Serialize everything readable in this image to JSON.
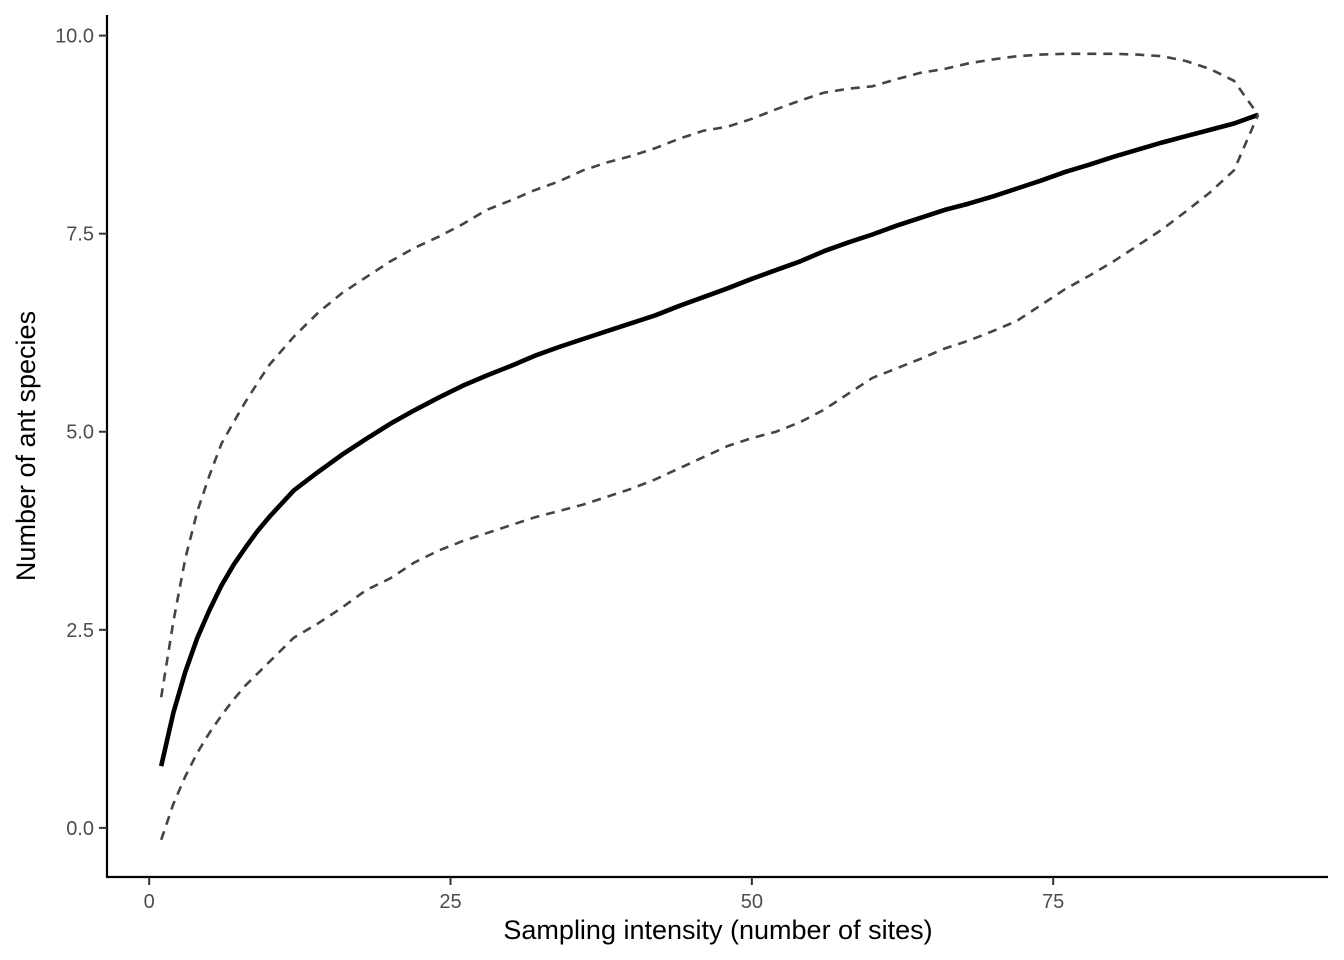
{
  "chart_data": {
    "type": "line",
    "title": "",
    "xlabel": "Sampling intensity (number of sites)",
    "ylabel": "Number of ant species",
    "xlim": [
      -3.5,
      97.8
    ],
    "ylim": [
      -0.62,
      10.26
    ],
    "x_ticks": [
      0,
      25,
      50,
      75
    ],
    "x_tick_labels": [
      "0",
      "25",
      "50",
      "75"
    ],
    "y_ticks": [
      0,
      2.5,
      5,
      7.5,
      10
    ],
    "y_tick_labels": [
      "0.0",
      "2.5",
      "5.0",
      "7.5",
      "10.0"
    ],
    "grid": false,
    "legend": "none",
    "series": [
      {
        "role": "mean",
        "color": "#000000",
        "line_style": "solid",
        "x": [
          1,
          2,
          3,
          4,
          5,
          6,
          7,
          8,
          9,
          10,
          12,
          14,
          16,
          18,
          20,
          22,
          24,
          26,
          28,
          30,
          32,
          34,
          36,
          38,
          40,
          42,
          44,
          46,
          48,
          50,
          52,
          54,
          56,
          58,
          60,
          62,
          64,
          66,
          68,
          70,
          72,
          74,
          76,
          78,
          80,
          82,
          84,
          86,
          88,
          90,
          92
        ],
        "y": [
          0.78,
          1.45,
          1.97,
          2.4,
          2.75,
          3.06,
          3.32,
          3.54,
          3.75,
          3.93,
          4.26,
          4.49,
          4.71,
          4.91,
          5.1,
          5.27,
          5.43,
          5.58,
          5.71,
          5.83,
          5.96,
          6.07,
          6.17,
          6.27,
          6.37,
          6.47,
          6.59,
          6.7,
          6.81,
          6.93,
          7.04,
          7.15,
          7.28,
          7.39,
          7.49,
          7.6,
          7.7,
          7.8,
          7.88,
          7.97,
          8.07,
          8.17,
          8.28,
          8.37,
          8.47,
          8.56,
          8.65,
          8.73,
          8.81,
          8.89,
          9.0
        ]
      },
      {
        "role": "upper",
        "color": "#444444",
        "line_style": "dashed",
        "x": [
          1,
          2,
          3,
          4,
          5,
          6,
          7,
          8,
          9,
          10,
          12,
          14,
          16,
          18,
          20,
          22,
          24,
          26,
          28,
          30,
          32,
          34,
          36,
          38,
          40,
          42,
          44,
          46,
          48,
          50,
          52,
          54,
          56,
          58,
          60,
          62,
          64,
          66,
          68,
          70,
          72,
          74,
          76,
          78,
          80,
          82,
          84,
          86,
          88,
          90,
          92
        ],
        "y": [
          1.65,
          2.6,
          3.4,
          4.0,
          4.45,
          4.85,
          5.12,
          5.38,
          5.62,
          5.85,
          6.2,
          6.5,
          6.75,
          6.95,
          7.15,
          7.32,
          7.46,
          7.62,
          7.8,
          7.92,
          8.05,
          8.16,
          8.3,
          8.4,
          8.48,
          8.58,
          8.7,
          8.8,
          8.85,
          8.95,
          9.07,
          9.18,
          9.28,
          9.33,
          9.36,
          9.45,
          9.53,
          9.58,
          9.65,
          9.7,
          9.74,
          9.76,
          9.77,
          9.77,
          9.77,
          9.76,
          9.74,
          9.68,
          9.58,
          9.43,
          9.0
        ]
      },
      {
        "role": "lower",
        "color": "#444444",
        "line_style": "dashed",
        "x": [
          1,
          2,
          3,
          4,
          5,
          6,
          7,
          8,
          9,
          10,
          12,
          14,
          16,
          18,
          20,
          22,
          24,
          26,
          28,
          30,
          32,
          34,
          36,
          38,
          40,
          42,
          44,
          46,
          48,
          50,
          52,
          54,
          56,
          58,
          60,
          62,
          64,
          66,
          68,
          70,
          72,
          74,
          76,
          78,
          80,
          82,
          84,
          86,
          88,
          90,
          92
        ],
        "y": [
          -0.15,
          0.3,
          0.65,
          0.95,
          1.2,
          1.42,
          1.62,
          1.8,
          1.95,
          2.1,
          2.4,
          2.58,
          2.78,
          3.0,
          3.15,
          3.35,
          3.5,
          3.62,
          3.72,
          3.82,
          3.92,
          4.0,
          4.08,
          4.18,
          4.28,
          4.4,
          4.54,
          4.68,
          4.82,
          4.92,
          5.0,
          5.12,
          5.28,
          5.48,
          5.68,
          5.8,
          5.92,
          6.05,
          6.15,
          6.27,
          6.4,
          6.6,
          6.8,
          6.97,
          7.15,
          7.35,
          7.55,
          7.78,
          8.02,
          8.3,
          9.0
        ]
      }
    ]
  }
}
